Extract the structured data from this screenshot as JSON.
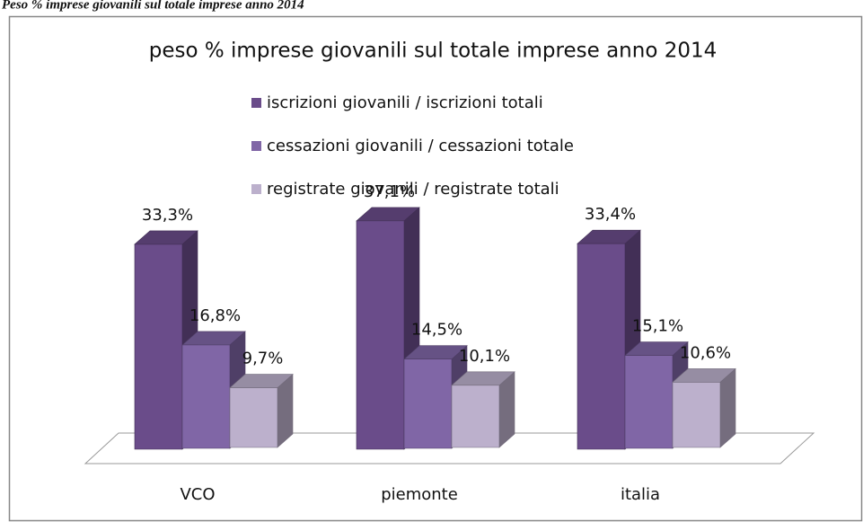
{
  "caption": "Peso % imprese giovanili sul totale imprese anno 2014",
  "chart_data": {
    "type": "bar3d",
    "title": "peso % imprese giovanili sul totale imprese anno 2014",
    "categories": [
      "VCO",
      "piemonte",
      "italia"
    ],
    "series": [
      {
        "name": "iscrizioni giovanili / iscrizioni totali",
        "color": "#6a4c8a",
        "values": [
          33.3,
          37.1,
          33.4
        ],
        "value_labels": [
          "33,3%",
          "37,1%",
          "33,4%"
        ]
      },
      {
        "name": "cessazioni giovanili / cessazioni totale",
        "color": "#8066a6",
        "values": [
          16.8,
          14.5,
          15.1
        ],
        "value_labels": [
          "16,8%",
          "14,5%",
          "15,1%"
        ]
      },
      {
        "name": "registrate giovanili / registrate totali",
        "color": "#bcb0cc",
        "values": [
          9.7,
          10.1,
          10.6
        ],
        "value_labels": [
          "9,7%",
          "10,1%",
          "10,6%"
        ]
      }
    ]
  }
}
